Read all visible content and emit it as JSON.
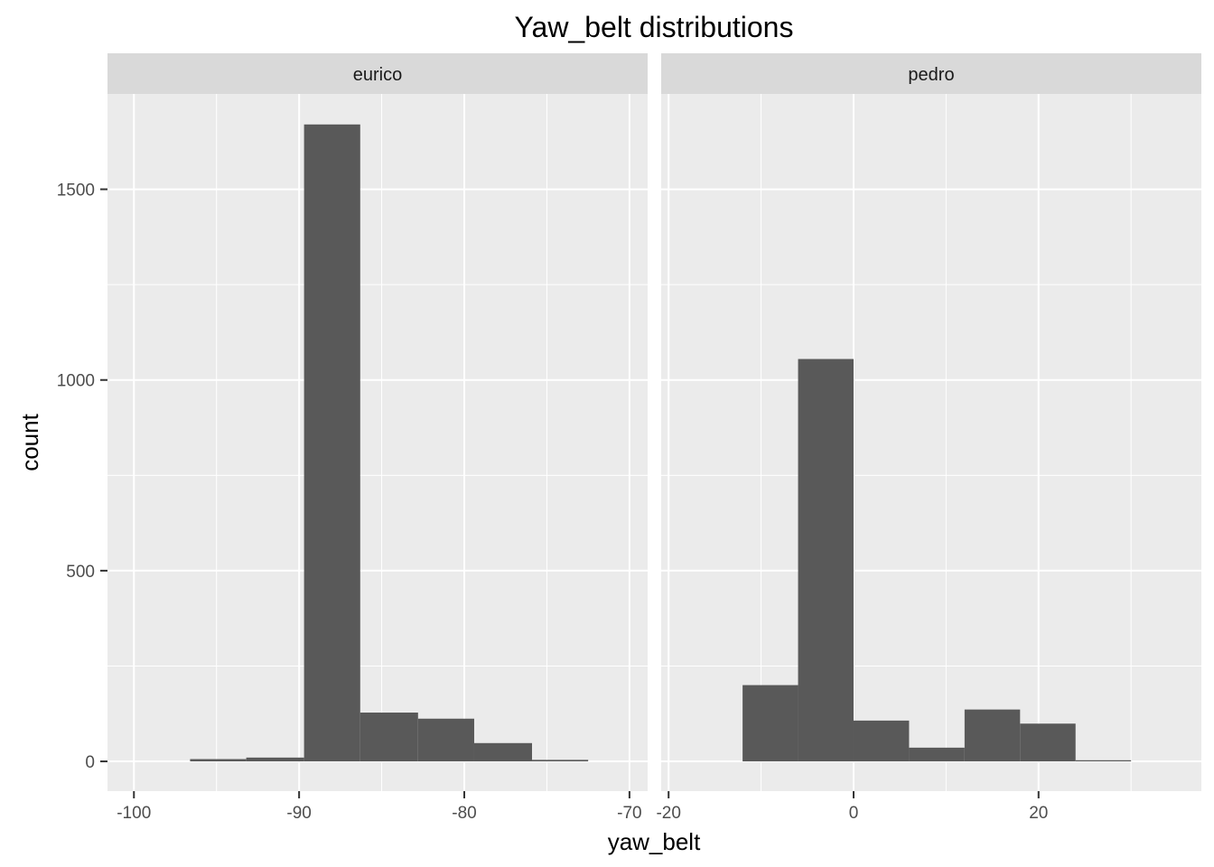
{
  "chart_data": {
    "type": "bar",
    "title": "Yaw_belt distributions",
    "xlabel": "yaw_belt",
    "ylabel": "count",
    "grid": true,
    "bar_color": "#595959",
    "panel_background": "#ebebeb",
    "strip_background": "#d9d9d9",
    "ylim": [
      -78,
      1750
    ],
    "y_ticks": [
      0,
      500,
      1000,
      1500
    ],
    "facets": [
      {
        "label": "eurico",
        "xlim": [
          -101.6,
          -68.9
        ],
        "x_ticks": [
          -100,
          -90,
          -80,
          -70
        ],
        "x_minor": [
          -95,
          -85,
          -75
        ],
        "bins": [
          {
            "x0": -96.6,
            "x1": -93.2,
            "count": 6
          },
          {
            "x0": -93.2,
            "x1": -89.7,
            "count": 10
          },
          {
            "x0": -89.7,
            "x1": -86.3,
            "count": 1670
          },
          {
            "x0": -86.3,
            "x1": -82.8,
            "count": 128
          },
          {
            "x0": -82.8,
            "x1": -79.4,
            "count": 112
          },
          {
            "x0": -79.4,
            "x1": -75.9,
            "count": 48
          },
          {
            "x0": -75.9,
            "x1": -72.5,
            "count": 4
          }
        ]
      },
      {
        "label": "pedro",
        "xlim": [
          -20.8,
          37.6
        ],
        "x_ticks": [
          -20,
          0,
          20
        ],
        "x_minor": [
          -10,
          10,
          30
        ],
        "bins": [
          {
            "x0": -12,
            "x1": -6,
            "count": 200
          },
          {
            "x0": -6,
            "x1": 0,
            "count": 1055
          },
          {
            "x0": 0,
            "x1": 6,
            "count": 107
          },
          {
            "x0": 6,
            "x1": 12,
            "count": 36
          },
          {
            "x0": 12,
            "x1": 18,
            "count": 136
          },
          {
            "x0": 18,
            "x1": 24,
            "count": 99
          },
          {
            "x0": 24,
            "x1": 30,
            "count": 3
          }
        ]
      }
    ]
  }
}
